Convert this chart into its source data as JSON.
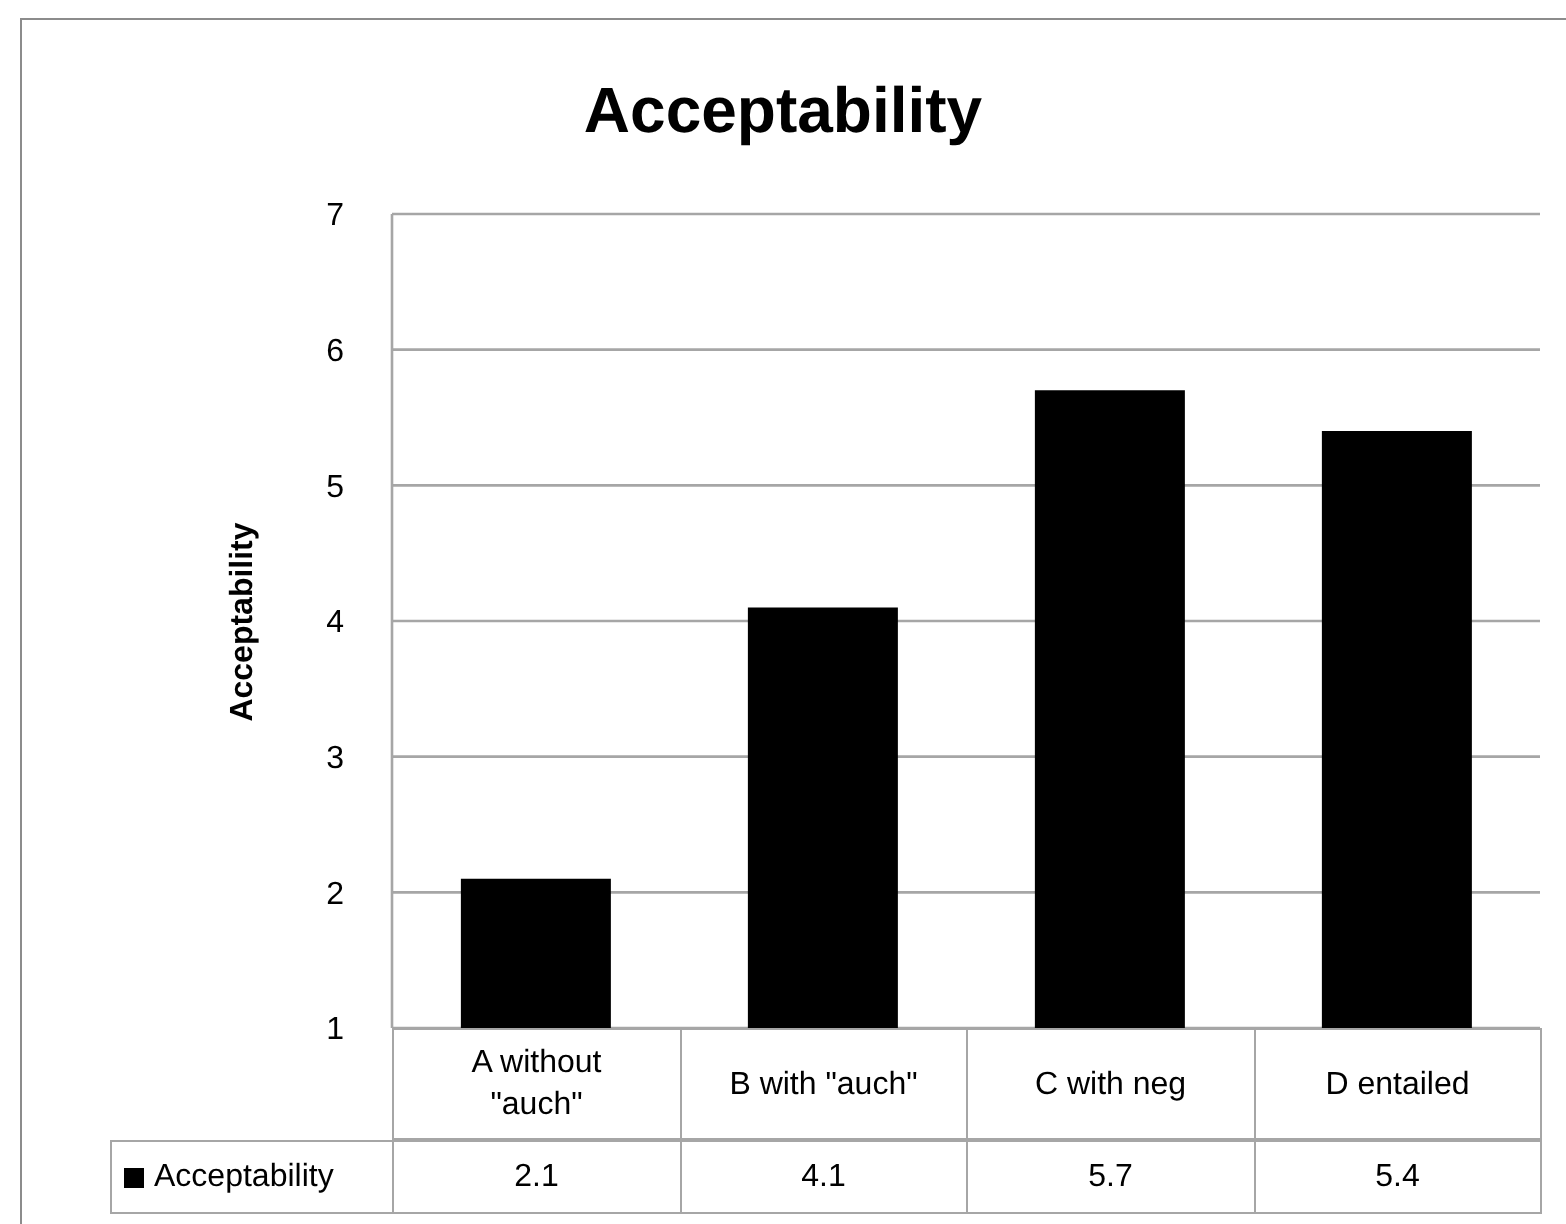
{
  "chart_data": {
    "type": "bar",
    "title": "Acceptability",
    "ylabel": "Acceptability",
    "categories": [
      "A without \"auch\"",
      "B with \"auch\"",
      "C with neg",
      "D entailed"
    ],
    "series": [
      {
        "name": "Acceptability",
        "color": "#000000",
        "values": [
          2.1,
          4.1,
          5.7,
          5.4
        ]
      }
    ],
    "ylim": [
      1,
      7
    ],
    "yticks": [
      1,
      2,
      3,
      4,
      5,
      6,
      7
    ],
    "grid": "y",
    "legend": "bottom",
    "data_labels": true
  }
}
